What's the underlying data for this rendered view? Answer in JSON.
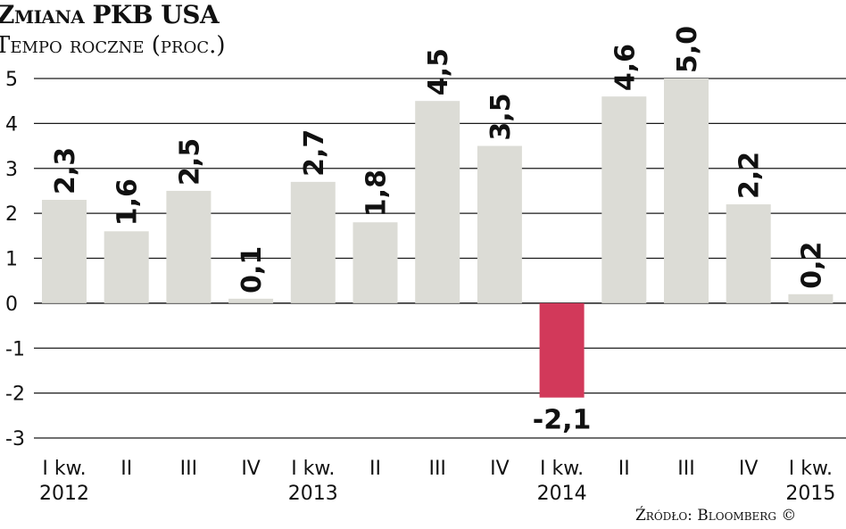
{
  "title": "Zmiana PKB USA",
  "subtitle": "Tempo roczne (proc.)",
  "source": "Źródło: Bloomberg ©",
  "colors": {
    "positive": "#dcdcd6",
    "negative": "#d2395a",
    "grid": "#1a1a1a"
  },
  "chart_data": {
    "type": "bar",
    "categories": [
      "I kw.\n2012",
      "II",
      "III",
      "IV",
      "I kw.\n2013",
      "II",
      "III",
      "IV",
      "I kw.\n2014",
      "II",
      "III",
      "IV",
      "I kw.\n2015"
    ],
    "values": [
      2.3,
      1.6,
      2.5,
      0.1,
      2.7,
      1.8,
      4.5,
      3.5,
      -2.1,
      4.6,
      5.0,
      2.2,
      0.2
    ],
    "value_labels": [
      "2,3",
      "1,6",
      "2,5",
      "0,1",
      "2,7",
      "1,8",
      "4,5",
      "3,5",
      "-2,1",
      "4,6",
      "5,0",
      "2,2",
      "0,2"
    ],
    "ylim": [
      -3,
      5
    ],
    "yticks": [
      5,
      4,
      3,
      2,
      1,
      0,
      -1,
      -2,
      -3
    ],
    "grid": true,
    "xlabel": "",
    "ylabel": ""
  }
}
